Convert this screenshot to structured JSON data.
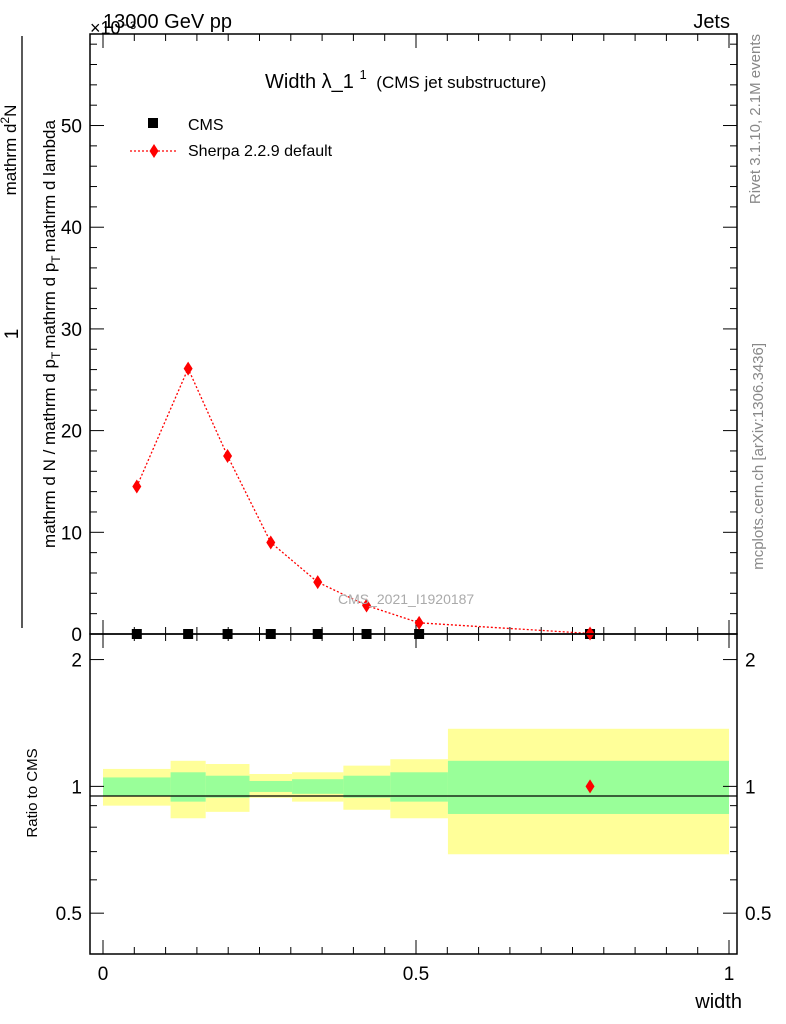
{
  "header": {
    "left": "13000 GeV pp",
    "right": "Jets",
    "exponent": "×10⁻³"
  },
  "watermark": "CMS_2021_I1920187",
  "side_text": {
    "rivet": "Rivet 3.1.10,  2.1M events",
    "mcplots": "mcplots.cern.ch [arXiv:1306.3436]"
  },
  "colors": {
    "mc": "#ff0000",
    "data": "#000000",
    "band_inner": "#99ff99",
    "band_outer": "#ffff99"
  },
  "chart_data": [
    {
      "type": "scatter",
      "title": "Width λ_1",
      "title_sup": "1",
      "title_note": "(CMS jet substructure)",
      "ylabel": "1 / mathrm d N / mathrm d p_T mathrm d p_T mathrm d lambda · mathrm d²N",
      "ylabel_parts": {
        "numerator_top": "mathrm d",
        "numerator_sup": "2",
        "numerator_end": "N",
        "one": "1",
        "denominator_line1": "mathrm d N / mathrm d p",
        "denominator_sub1": "T",
        "denominator_rest": "mathrm d p",
        "denominator_sub2": "T",
        "denominator_end": "mathrm d lambda"
      },
      "ylim": [
        0,
        59
      ],
      "y_ticks": [
        0,
        10,
        20,
        30,
        40,
        50
      ],
      "y_tick_labels": [
        "0",
        "10",
        "20",
        "30",
        "40",
        "50"
      ],
      "xlim": [
        0,
        1
      ],
      "legend": {
        "position": "top-left"
      },
      "series": [
        {
          "name": "CMS",
          "marker": "square",
          "x": [
            0.054,
            0.136,
            0.199,
            0.268,
            0.343,
            0.421,
            0.505,
            0.778
          ],
          "y": [
            0.0,
            0.0,
            0.0,
            0.0,
            0.0,
            0.0,
            0.0,
            0.0
          ]
        },
        {
          "name": "Sherpa 2.2.9 default",
          "marker": "diamond",
          "line": "dotted",
          "x": [
            0.054,
            0.136,
            0.199,
            0.268,
            0.343,
            0.421,
            0.505,
            0.778
          ],
          "y": [
            14.5,
            26.1,
            17.5,
            9.0,
            5.1,
            2.8,
            1.1,
            0.05
          ]
        }
      ]
    },
    {
      "type": "area",
      "ylabel": "Ratio to CMS",
      "xlabel": "width",
      "yscale": "log",
      "ylim": [
        0.4,
        2.3
      ],
      "y_ticks": [
        0.5,
        1,
        2
      ],
      "y_tick_labels": [
        "0.5",
        "1",
        "2"
      ],
      "x_ticks": [
        0,
        0.5,
        1
      ],
      "x_tick_labels": [
        "0",
        "0.5",
        "1"
      ],
      "xlim": [
        0,
        1
      ],
      "reference": 1,
      "bins": [
        {
          "x0": 0.0,
          "x1": 0.108,
          "inner": [
            0.95,
            1.05
          ],
          "outer": [
            0.9,
            1.1
          ]
        },
        {
          "x0": 0.108,
          "x1": 0.164,
          "inner": [
            0.92,
            1.08
          ],
          "outer": [
            0.84,
            1.15
          ]
        },
        {
          "x0": 0.164,
          "x1": 0.234,
          "inner": [
            0.94,
            1.06
          ],
          "outer": [
            0.87,
            1.13
          ]
        },
        {
          "x0": 0.234,
          "x1": 0.302,
          "inner": [
            0.97,
            1.03
          ],
          "outer": [
            0.94,
            1.07
          ]
        },
        {
          "x0": 0.302,
          "x1": 0.384,
          "inner": [
            0.96,
            1.04
          ],
          "outer": [
            0.92,
            1.08
          ]
        },
        {
          "x0": 0.384,
          "x1": 0.459,
          "inner": [
            0.94,
            1.06
          ],
          "outer": [
            0.88,
            1.12
          ]
        },
        {
          "x0": 0.459,
          "x1": 0.551,
          "inner": [
            0.92,
            1.08
          ],
          "outer": [
            0.84,
            1.16
          ]
        },
        {
          "x0": 0.551,
          "x1": 1.0,
          "inner": [
            0.86,
            1.15
          ],
          "outer": [
            0.69,
            1.37
          ]
        }
      ],
      "mc_ratio": {
        "x": [
          0.778
        ],
        "y": [
          1.0
        ]
      }
    }
  ]
}
